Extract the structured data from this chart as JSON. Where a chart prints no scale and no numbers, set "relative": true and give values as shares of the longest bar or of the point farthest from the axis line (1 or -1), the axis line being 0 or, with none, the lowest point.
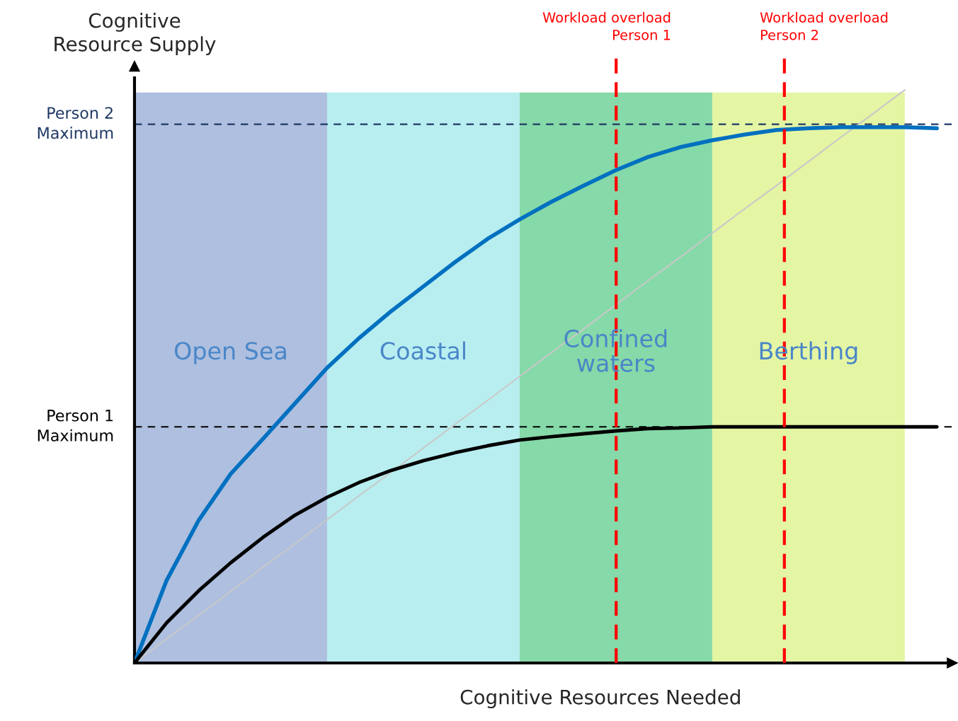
{
  "chart_data": {
    "type": "line",
    "relative": true,
    "xlabel": "Cognitive Resources Needed",
    "ylabel": "Cognitive\nResource Supply",
    "categories": [
      null,
      null,
      null,
      null,
      null,
      null,
      null,
      null,
      null,
      null,
      null,
      null,
      null,
      null,
      null,
      null,
      null,
      null,
      null,
      null,
      null,
      null,
      null,
      null,
      null,
      null
    ],
    "series": [
      {
        "color": "#c8c8c8",
        "values": [
          0,
          0.042,
          0.083,
          0.125,
          0.167,
          0.208,
          0.25,
          0.292,
          0.333,
          0.375,
          0.417,
          0.458,
          0.5,
          0.542,
          0.583,
          0.625,
          0.667,
          0.708,
          0.75,
          0.792,
          0.833,
          0.875,
          0.917,
          0.958,
          1,
          null
        ]
      },
      {
        "color": "#0070c0",
        "values": [
          0,
          0.144,
          0.249,
          0.33,
          0.391,
          0.453,
          0.515,
          0.567,
          0.614,
          0.657,
          0.7,
          0.74,
          0.774,
          0.805,
          0.833,
          0.86,
          0.883,
          0.9,
          0.912,
          0.922,
          0.93,
          0.933,
          0.935,
          0.935,
          0.935,
          0.933
        ]
      },
      {
        "color": "#000000",
        "values": [
          0,
          0.07,
          0.126,
          0.175,
          0.219,
          0.258,
          0.289,
          0.315,
          0.336,
          0.353,
          0.367,
          0.379,
          0.389,
          0.395,
          0.4,
          0.405,
          0.409,
          0.41,
          0.412,
          0.412,
          0.412,
          0.412,
          0.412,
          0.412,
          0.412,
          0.412
        ]
      }
    ],
    "ref_lines": [
      {
        "axis": "y",
        "value": 0.94,
        "label": "Person 2\nMaximum",
        "color": "#1f3864",
        "line_style": "dashed"
      },
      {
        "axis": "y",
        "value": 0.412,
        "label": "Person 1\nMaximum",
        "color": "#000000",
        "line_style": "dashed"
      }
    ],
    "annotations": [
      "Open Sea",
      "Coastal",
      "Confined\nwaters",
      "Berthing",
      "Workload overload\nPerson 1",
      "Workload overload\nPerson 2"
    ]
  }
}
